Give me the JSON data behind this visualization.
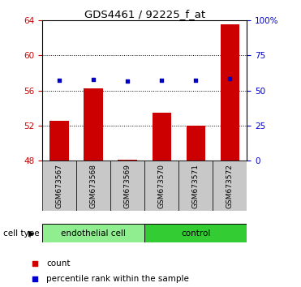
{
  "title": "GDS4461 / 92225_f_at",
  "samples": [
    "GSM673567",
    "GSM673568",
    "GSM673569",
    "GSM673570",
    "GSM673571",
    "GSM673572"
  ],
  "counts": [
    52.5,
    56.2,
    48.1,
    53.5,
    52.0,
    63.5
  ],
  "percentiles": [
    57.0,
    58.0,
    56.5,
    57.0,
    57.0,
    58.5
  ],
  "ylim_left": [
    48,
    64
  ],
  "ylim_right": [
    0,
    100
  ],
  "yticks_left": [
    48,
    52,
    56,
    60,
    64
  ],
  "yticks_right": [
    0,
    25,
    50,
    75,
    100
  ],
  "groups": [
    {
      "label": "endothelial cell",
      "indices": [
        0,
        1,
        2
      ],
      "color": "#90EE90"
    },
    {
      "label": "control",
      "indices": [
        3,
        4,
        5
      ],
      "color": "#33CC33"
    }
  ],
  "bar_color": "#CC0000",
  "point_color": "#0000CC",
  "bar_width": 0.55,
  "cell_type_label": "cell type",
  "legend_bar_label": "count",
  "legend_point_label": "percentile rank within the sample",
  "background_xticklabels": "#C8C8C8",
  "left_axis_color": "#CC0000",
  "right_axis_color": "#0000CC"
}
